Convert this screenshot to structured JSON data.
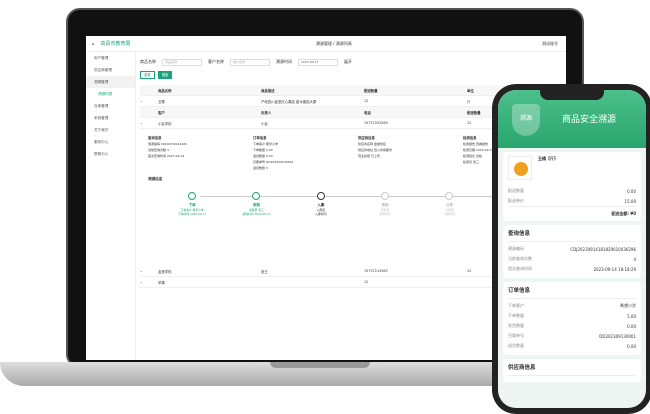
{
  "laptop": {
    "brand": "高县市教育局",
    "breadcrumb": "溯源管理 / 溯源列表",
    "user": "测试账号",
    "sidebar": [
      {
        "label": "用户管理"
      },
      {
        "label": "供应商管理"
      },
      {
        "label": "溯源管理"
      },
      {
        "label": "溯源列表",
        "sub": true
      },
      {
        "label": "仓库管理"
      },
      {
        "label": "系统管理"
      },
      {
        "label": "关于我们"
      },
      {
        "label": "服务中心"
      },
      {
        "label": "帮助中心"
      }
    ],
    "filters": {
      "product_label": "商品名称",
      "product_placeholder": "商品名称",
      "customer_label": "客户名称",
      "customer_placeholder": "客户名称",
      "date_label": "溯源时间",
      "date_value": "2023-09-17",
      "more": "展开"
    },
    "buttons": {
      "reset": "重置",
      "search": "搜索"
    },
    "table": {
      "headers": [
        "商品名称",
        "商品描述",
        "配送数量",
        "单位"
      ],
      "rows": [
        [
          "丑橘",
          "产地四川金堂红心果品 甜水蜜桔大果",
          "12",
          "斤"
        ]
      ]
    },
    "subtable": {
      "headers": [
        "客户",
        "负责人",
        "电话",
        "配送数量"
      ],
      "rows": [
        [
          "小会学校",
          "小会",
          "15757202569",
          "12"
        ]
      ]
    },
    "info": [
      {
        "title": "查询信息",
        "lines": [
          "溯源编码 CDJ20230914181",
          "当前查询次数 4",
          "首次查询时间 2023-09-14"
        ]
      },
      {
        "title": "订单信息",
        "lines": [
          "下单客户 希望小学",
          "下单数量 5.00",
          "发货数量 0.00",
          "归属单号 DD202309130001",
          "退货数量 0"
        ]
      },
      {
        "title": "供应商信息",
        "lines": [
          "供应商名称 金堂供应",
          "供应商地址 四川省成都市",
          "营业执照 已上传"
        ]
      },
      {
        "title": "检测信息",
        "lines": [
          "检测报告 查看报告",
          "检测日期 2023-09-15",
          "检测结论 合格",
          "检测员 张三"
        ]
      }
    ],
    "trace_title": "溯源信息",
    "steps": [
      {
        "name": "下单",
        "l1": "下单客户 希望小学",
        "l2": "下单时间 2023-09-17",
        "state": "done"
      },
      {
        "name": "采购",
        "l1": "采购员 张三",
        "l2": "采购时间 2023-09-17",
        "state": "done"
      },
      {
        "name": "入库",
        "l1": "入库员",
        "l2": "入库时间",
        "state": "current"
      },
      {
        "name": "质检",
        "l1": "质检员",
        "l2": "质检时间",
        "state": "todo"
      },
      {
        "name": "分拣",
        "l1": "分拣员",
        "l2": "分拣时间",
        "state": "todo"
      },
      {
        "name": "配送",
        "l1": "配送司机",
        "l2": "配送时间",
        "state": "todo"
      }
    ],
    "more_rows": [
      [
        "金堂学校",
        "老王",
        "15757212562",
        "12"
      ],
      [
        "苹果",
        "",
        "12",
        ""
      ]
    ]
  },
  "phone": {
    "shield": "溯源",
    "title": "商品安全溯源",
    "product": {
      "name": "丑橘【斤】",
      "qty_label": "配送数量",
      "qty": "0.00",
      "price_label": "配送单价",
      "price": "15.00",
      "total": "配送金额: ¥0"
    },
    "query": {
      "title": "查询信息",
      "rows": [
        [
          "溯源编码",
          "CDJ20230914181829610036296"
        ],
        [
          "当前查询次数",
          "4"
        ],
        [
          "首次查询时间",
          "2023-09-14 18:18:29"
        ]
      ]
    },
    "order": {
      "title": "订单信息",
      "rows": [
        [
          "下单客户",
          "希望小学"
        ],
        [
          "下单数量",
          "5.00"
        ],
        [
          "发货数量",
          "0.00"
        ],
        [
          "归属单号",
          "DD202309130001"
        ],
        [
          "退货数量",
          "0.00"
        ]
      ]
    },
    "supplier": {
      "title": "供应商信息"
    }
  },
  "colors": {
    "accent": "#1aa37a",
    "phone_header": "#3ab37c"
  }
}
